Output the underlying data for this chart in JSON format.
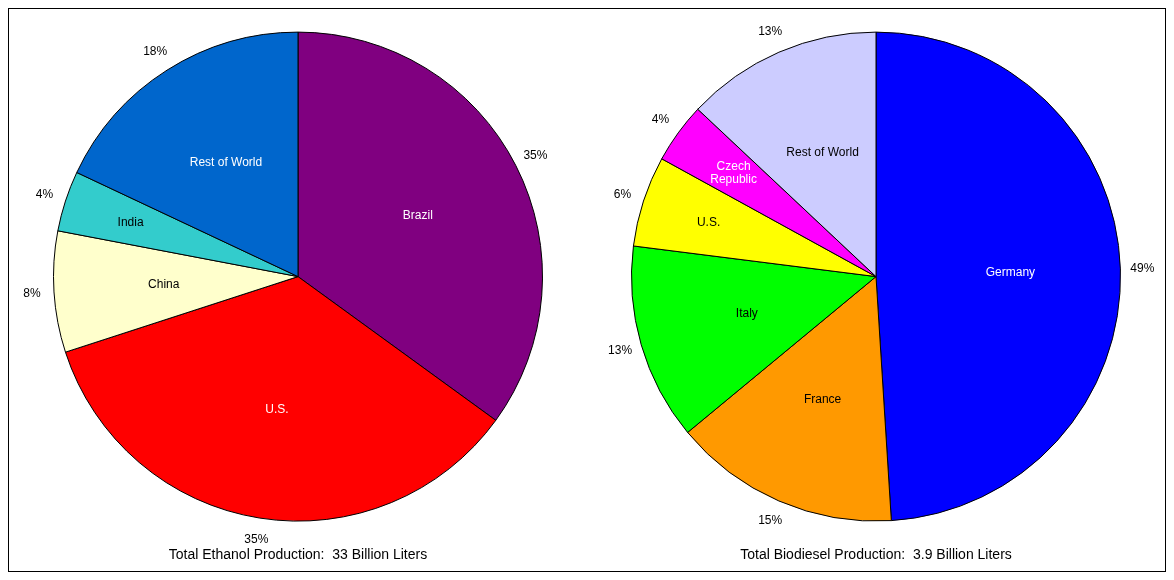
{
  "chart_data": [
    {
      "type": "pie",
      "title": "Total Ethanol Production:  33 Billion Liters",
      "categories": [
        "Brazil",
        "U.S.",
        "China",
        "India",
        "Rest of World"
      ],
      "values": [
        35,
        35,
        8,
        4,
        18
      ],
      "value_labels": [
        "35%",
        "35%",
        "8%",
        "4%",
        "18%"
      ],
      "colors": [
        "#800080",
        "#ff0000",
        "#ffffcc",
        "#33cccc",
        "#0066cc"
      ],
      "legend": false
    },
    {
      "type": "pie",
      "title": "Total Biodiesel Production:  3.9 Billion Liters",
      "categories": [
        "Germany",
        "France",
        "Italy",
        "U.S.",
        "Czech Republic",
        "Rest of World"
      ],
      "values": [
        49,
        15,
        13,
        6,
        4,
        13
      ],
      "value_labels": [
        "49%",
        "15%",
        "13%",
        "6%",
        "4%",
        "13%"
      ],
      "colors": [
        "#0000ff",
        "#ff9900",
        "#00ff00",
        "#ffff00",
        "#ff00ff",
        "#ccccff"
      ],
      "legend": false
    }
  ]
}
